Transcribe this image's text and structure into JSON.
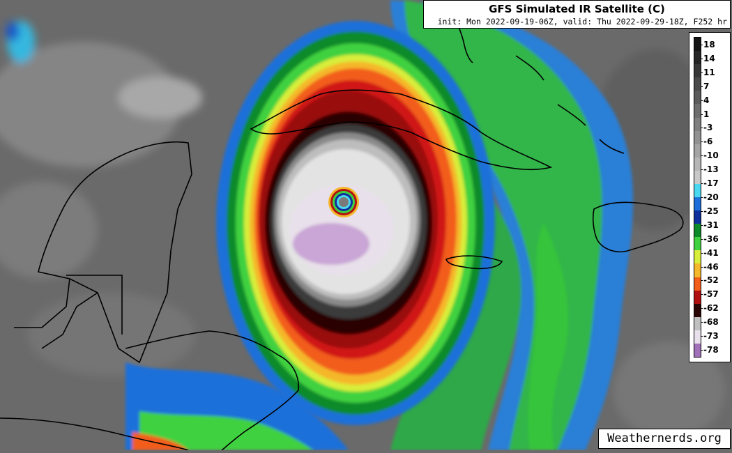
{
  "title": "GFS Simulated IR Satellite (C)",
  "subtitle": "init: Mon 2022-09-19-06Z, valid: Thu 2022-09-29-18Z, F252 hr",
  "watermark": "Weathernerds.org",
  "colorbar": {
    "labels": [
      "18",
      "14",
      "11",
      "7",
      "4",
      "1",
      "-3",
      "-6",
      "-10",
      "-13",
      "-17",
      "-20",
      "-25",
      "-31",
      "-36",
      "-41",
      "-46",
      "-52",
      "-57",
      "-62",
      "-68",
      "-73",
      "-78"
    ],
    "colors": [
      "#141414",
      "#262626",
      "#383838",
      "#4a4a4a",
      "#5c5c5c",
      "#6e6e6e",
      "#808080",
      "#929292",
      "#a4a4a4",
      "#b6b6b6",
      "#c8c8c8",
      "#49d8f0",
      "#1e6fd9",
      "#0f2f9c",
      "#0e8a2a",
      "#3fd13f",
      "#d8ee3a",
      "#f5b72b",
      "#f25d1a",
      "#b01010",
      "#2a0505",
      "#c0c0c0",
      "#e8e0ea",
      "#a070b8"
    ]
  }
}
